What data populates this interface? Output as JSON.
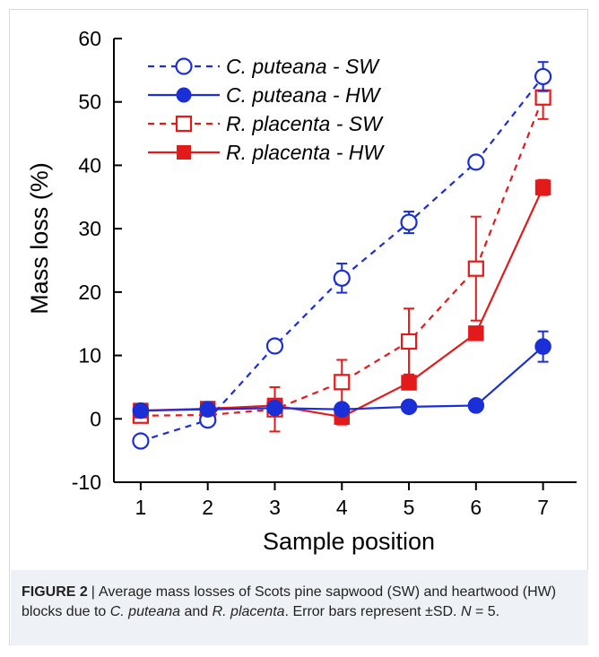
{
  "chart_data": {
    "type": "line",
    "xlabel": "Sample position",
    "ylabel": "Mass loss (%)",
    "x": [
      1,
      2,
      3,
      4,
      5,
      6,
      7
    ],
    "xlim": [
      0.6,
      7.5
    ],
    "ylim": [
      -10,
      60
    ],
    "yticks": [
      -10,
      0,
      10,
      20,
      30,
      40,
      50,
      60
    ],
    "xticks": [
      1,
      2,
      3,
      4,
      5,
      6,
      7
    ],
    "grid": false,
    "legend_position": "top-left",
    "series": [
      {
        "name": "C. puteana - SW",
        "color": "#1a2fd6",
        "line": "dashed",
        "marker": "open-circle",
        "values": [
          -3.5,
          -0.2,
          11.5,
          22.2,
          31.0,
          40.5,
          54.0
        ],
        "errors": [
          0.5,
          0.5,
          0.5,
          2.3,
          1.7,
          0.6,
          2.3
        ]
      },
      {
        "name": "C. puteana - HW",
        "color": "#1a2fd6",
        "line": "solid",
        "marker": "filled-circle",
        "values": [
          1.3,
          1.5,
          1.7,
          1.5,
          1.9,
          2.1,
          11.4
        ],
        "errors": [
          0.2,
          0.2,
          0.2,
          0.2,
          0.2,
          0.2,
          2.4
        ]
      },
      {
        "name": "R. placenta - SW",
        "color": "#e31a1a",
        "line": "dashed",
        "marker": "open-square",
        "values": [
          0.5,
          0.6,
          1.5,
          5.8,
          12.2,
          23.7,
          50.7
        ],
        "errors": [
          0.5,
          0.5,
          3.5,
          3.5,
          5.2,
          8.2,
          3.4
        ]
      },
      {
        "name": "R. placenta - HW",
        "color": "#e31a1a",
        "line": "solid",
        "marker": "filled-square",
        "values": [
          1.3,
          1.6,
          2.1,
          0.3,
          5.7,
          13.5,
          36.5
        ],
        "errors": [
          0.3,
          0.3,
          0.3,
          1.2,
          1.0,
          0.5,
          1.2
        ]
      }
    ]
  },
  "caption": {
    "label": "FIGURE 2",
    "separator": "|",
    "text_before_species1": "Average mass losses of Scots pine sapwood (SW) and heartwood (HW) blocks due to ",
    "species1": "C. puteana",
    "text_and": " and ",
    "species2": "R. placenta",
    "text_error": ". Error bars represent ±SD. ",
    "n_label": "N",
    "n_value": " = 5."
  }
}
